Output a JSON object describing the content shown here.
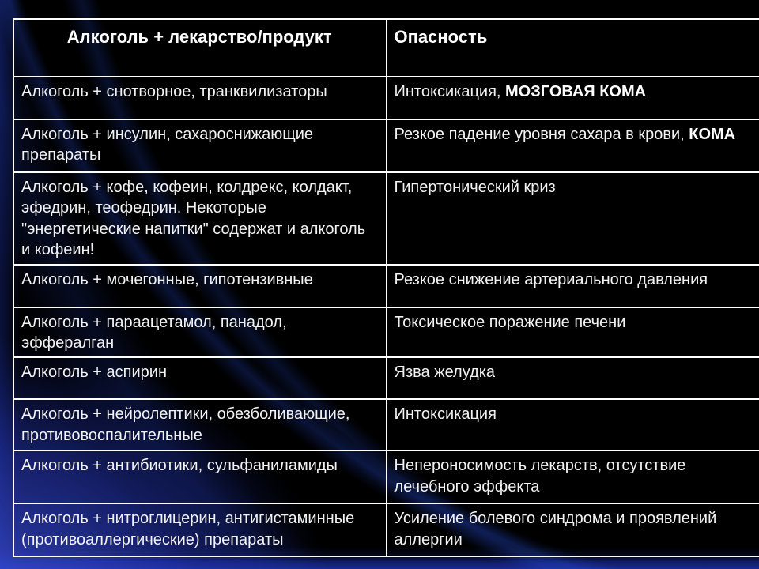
{
  "colors": {
    "background": "#000000",
    "accent_blue": "#2b3fae",
    "border": "#ffffff",
    "text": "#f2f2f2"
  },
  "table": {
    "headers": [
      {
        "label": "Алкоголь + лекарство/продукт"
      },
      {
        "label": "Опасность"
      }
    ],
    "rows": [
      {
        "combo": "Алкоголь + снотворное, транквилизаторы",
        "danger": "Интоксикация, ",
        "danger_bold": "МОЗГОВАЯ КОМА"
      },
      {
        "combo": "Алкоголь + инсулин, сахароснижающие препараты",
        "danger": "Резкое падение уровня сахара в крови, ",
        "danger_bold": "КОМА"
      },
      {
        "combo": "Алкоголь + кофе, кофеин, колдрекс, колдакт, эфедрин, теофедрин. Некоторые \"энергетические напитки\" содержат и алкоголь и кофеин!",
        "danger": "Гипертонический криз",
        "danger_bold": ""
      },
      {
        "combo": "Алкоголь + мочегонные, гипотензивные",
        "danger": "Резкое снижение артериального давления",
        "danger_bold": ""
      },
      {
        "combo": "Алкоголь + параацетамол, панадол, эффералган",
        "danger": "Токсическое поражение печени",
        "danger_bold": ""
      },
      {
        "combo": "Алкоголь + аспирин",
        "danger": "Язва желудка",
        "danger_bold": ""
      },
      {
        "combo": "Алкоголь + нейролептики, обезболивающие, противовоспалительные",
        "danger": "Интоксикация",
        "danger_bold": ""
      },
      {
        "combo": "Алкоголь + антибиотики, сульфаниламиды",
        "danger": "Непероносимость лекарств, отсутствие лечебного эффекта",
        "danger_bold": ""
      },
      {
        "combo": "Алкоголь + нитроглицерин, антигистаминные (противоаллергические) препараты",
        "danger": "Усиление болевого синдрома и проявлений аллергии",
        "danger_bold": ""
      }
    ]
  }
}
